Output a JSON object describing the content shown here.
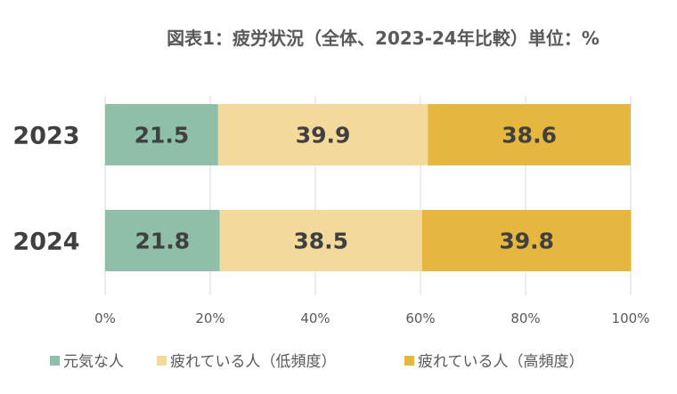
{
  "chart_data": {
    "type": "bar",
    "orientation": "horizontal-stacked-100",
    "title": "図表1：疲労状況（全体、2023-24年比較）単位：%",
    "categories": [
      "2023",
      "2024"
    ],
    "series": [
      {
        "name": "元気な人",
        "values": [
          21.5,
          21.8
        ],
        "color": "#8fbfa8"
      },
      {
        "name": "疲れている人（低頻度）",
        "values": [
          39.9,
          38.5
        ],
        "color": "#f3d99b"
      },
      {
        "name": "疲れている人（高頻度）",
        "values": [
          38.6,
          39.8
        ],
        "color": "#e5b73f"
      }
    ],
    "xticks": [
      "0%",
      "20%",
      "40%",
      "60%",
      "80%",
      "100%"
    ],
    "xlim": [
      0,
      100
    ],
    "grid": true,
    "legend": "bottom"
  }
}
